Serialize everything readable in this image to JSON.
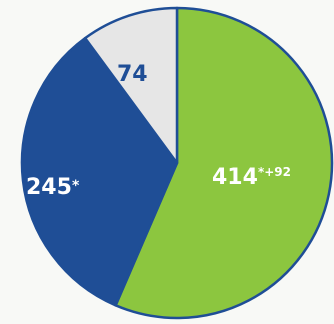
{
  "chart_data": {
    "type": "pie",
    "slices": [
      {
        "label": "414",
        "suffix": "*+92",
        "value": 414,
        "color": "#8cc63f",
        "label_color": "#ffffff"
      },
      {
        "label": "245",
        "suffix": "*",
        "value": 245,
        "color": "#1f4e96",
        "label_color": "#ffffff"
      },
      {
        "label": "74",
        "suffix": "",
        "value": 74,
        "color": "#e6e6e6",
        "label_color": "#1f4e96"
      }
    ],
    "start": "12 o'clock",
    "direction": "clockwise",
    "stroke_color": "#1f4e96"
  }
}
